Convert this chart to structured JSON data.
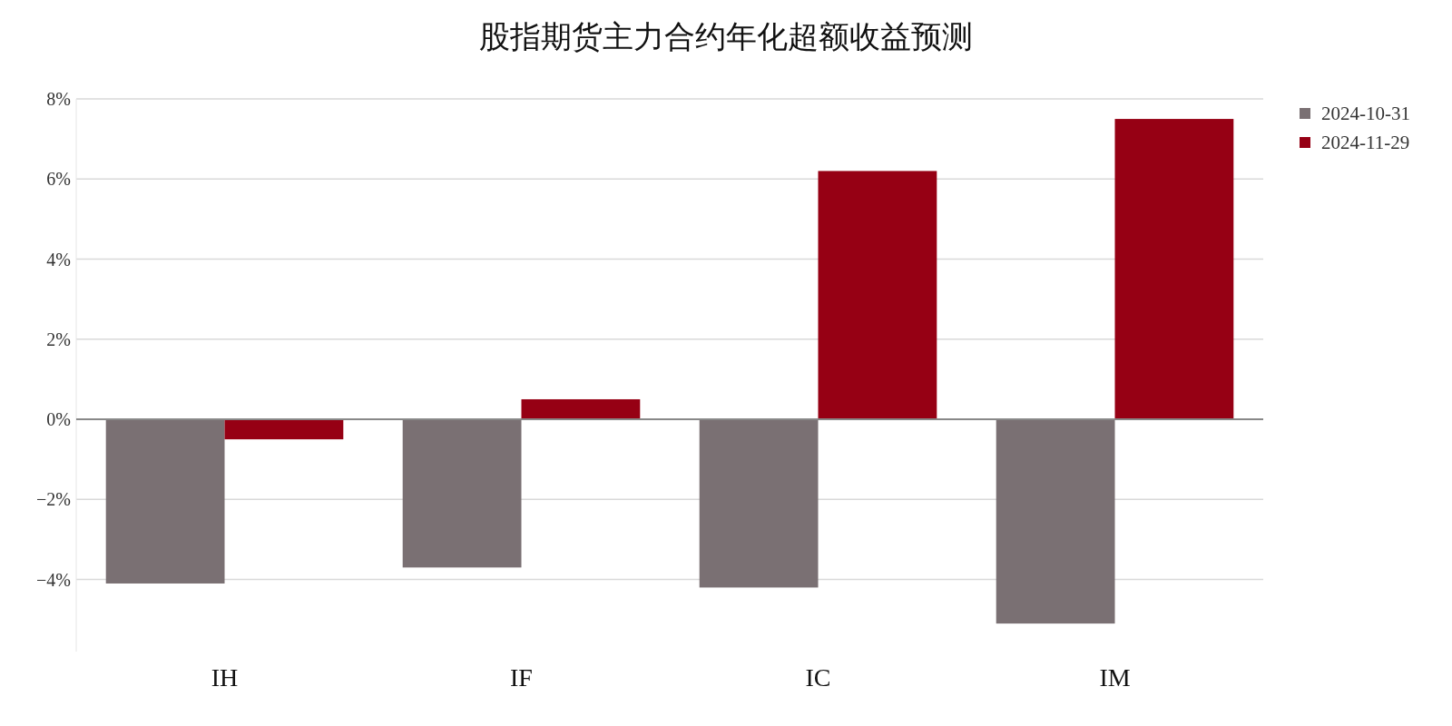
{
  "chart_data": {
    "type": "bar",
    "title": "股指期货主力合约年化超额收益预测",
    "categories": [
      "IH",
      "IF",
      "IC",
      "IM"
    ],
    "series": [
      {
        "name": "2024-10-31",
        "color": "#7a7073",
        "values": [
          -4.1,
          -3.7,
          -4.2,
          -5.1
        ]
      },
      {
        "name": "2024-11-29",
        "color": "#960014",
        "values": [
          -0.5,
          0.5,
          6.2,
          7.5
        ]
      }
    ],
    "ylim": [
      -5.8,
      8
    ],
    "yticks": [
      {
        "value": -4,
        "label": "−4%"
      },
      {
        "value": -2,
        "label": "−2%"
      },
      {
        "value": 0,
        "label": "0%"
      },
      {
        "value": 2,
        "label": "2%"
      },
      {
        "value": 4,
        "label": "4%"
      },
      {
        "value": 6,
        "label": "6%"
      },
      {
        "value": 8,
        "label": "8%"
      }
    ],
    "grid": "y",
    "legend": "top right",
    "marker": "square"
  }
}
